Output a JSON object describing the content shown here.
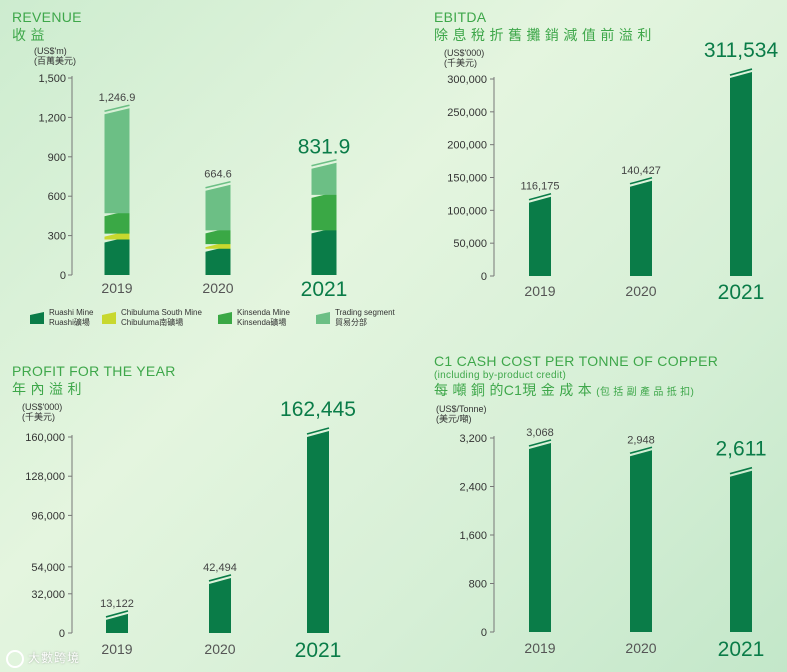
{
  "colors": {
    "ruashi": "#0a7c48",
    "chibuluma": "#c8d82e",
    "kinsenda": "#3aa845",
    "trading": "#6cbf85",
    "bar": "#0a7c48",
    "title": "#3ea74a"
  },
  "revenue": {
    "title": "REVENUE",
    "title_zh": "收 益",
    "unit": "(US$'m)",
    "unit_zh": "(百萬美元)"
  },
  "ebitda": {
    "title": "EBITDA",
    "title_zh": "除 息 稅 折 舊 攤 銷 減 值 前 溢 利",
    "unit": "(US$'000)",
    "unit_zh": "(千美元)"
  },
  "profit": {
    "title": "PROFIT FOR THE YEAR",
    "title_zh": "年 內 溢 利",
    "unit": "(US$'000)",
    "unit_zh": "(千美元)"
  },
  "c1": {
    "title": "C1 CASH COST PER TONNE OF COPPER",
    "subtitle": "(including by-product credit)",
    "title_zh": "每 噸 銅 的C1現 金 成 本",
    "title_zh_note": "(包 括 副 產 品 抵 扣)",
    "unit": "(US$/Tonne)",
    "unit_zh": "(美元/噸)"
  },
  "legend": [
    {
      "label": "Ruashi Mine",
      "label_zh": "Ruashi礦場",
      "color_key": "ruashi"
    },
    {
      "label": "Chibuluma South Mine",
      "label_zh": "Chibuluma南礦場",
      "color_key": "chibuluma"
    },
    {
      "label": "Kinsenda Mine",
      "label_zh": "Kinsenda礦場",
      "color_key": "kinsenda"
    },
    {
      "label": "Trading segment",
      "label_zh": "貿易分部",
      "color_key": "trading"
    }
  ],
  "watermark": "大數跨境",
  "chart_data": [
    {
      "id": "revenue",
      "type": "bar",
      "stacked": true,
      "title": "REVENUE",
      "ylabel": "(US$'m)",
      "categories": [
        "2019",
        "2020",
        "2021"
      ],
      "series": [
        {
          "name": "Ruashi Mine",
          "values": [
            270,
            200,
            340
          ]
        },
        {
          "name": "Chibuluma South Mine",
          "values": [
            45,
            35,
            0
          ]
        },
        {
          "name": "Kinsenda Mine",
          "values": [
            155,
            105,
            270
          ]
        },
        {
          "name": "Trading segment",
          "values": [
            776.9,
            324.6,
            221.9
          ]
        }
      ],
      "totals": [
        "1,246.9",
        "664.6",
        "831.9"
      ],
      "ylim": [
        0,
        1500
      ],
      "yticks": [
        0,
        300,
        600,
        900,
        1200,
        1500
      ],
      "yticklabels": [
        "0",
        "300",
        "600",
        "900",
        "1,200",
        "1,500"
      ]
    },
    {
      "id": "ebitda",
      "type": "bar",
      "title": "EBITDA",
      "ylabel": "(US$'000)",
      "categories": [
        "2019",
        "2020",
        "2021"
      ],
      "values": [
        116175,
        140427,
        311534
      ],
      "value_labels": [
        "116,175",
        "140,427",
        "311,534"
      ],
      "ylim": [
        0,
        300000
      ],
      "yticks": [
        0,
        50000,
        100000,
        150000,
        200000,
        250000,
        300000
      ],
      "yticklabels": [
        "0",
        "50,000",
        "100,000",
        "150,000",
        "200,000",
        "250,000",
        "300,000"
      ]
    },
    {
      "id": "profit",
      "type": "bar",
      "title": "PROFIT FOR THE YEAR",
      "ylabel": "(US$'000)",
      "categories": [
        "2019",
        "2020",
        "2021"
      ],
      "values": [
        13122,
        42494,
        162445
      ],
      "value_labels": [
        "13,122",
        "42,494",
        "162,445"
      ],
      "ylim": [
        0,
        160000
      ],
      "yticks": [
        0,
        32000,
        54000,
        96000,
        128000,
        160000
      ],
      "yticklabels": [
        "0",
        "32,000",
        "54,000",
        "96,000",
        "128,000",
        "160,000"
      ]
    },
    {
      "id": "c1",
      "type": "bar",
      "title": "C1 CASH COST PER TONNE OF COPPER",
      "ylabel": "(US$/Tonne)",
      "categories": [
        "2019",
        "2020",
        "2021"
      ],
      "values": [
        3068,
        2948,
        2611
      ],
      "value_labels": [
        "3,068",
        "2,948",
        "2,611"
      ],
      "ylim": [
        0,
        3200
      ],
      "yticks": [
        0,
        800,
        1600,
        2400,
        3200
      ],
      "yticklabels": [
        "0",
        "800",
        "1,600",
        "2,400",
        "3,200"
      ]
    }
  ]
}
